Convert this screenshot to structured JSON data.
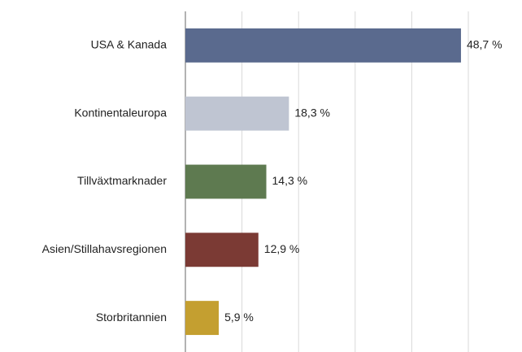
{
  "chart_data": {
    "type": "bar",
    "orientation": "horizontal",
    "categories": [
      "USA & Kanada",
      "Kontinentaleuropa",
      "Tillväxtmarknader",
      "Asien/Stillahavsregionen",
      "Storbritannien"
    ],
    "values": [
      48.7,
      18.3,
      14.3,
      12.9,
      5.9
    ],
    "value_labels": [
      "48,7 %",
      "18,3 %",
      "14,3 %",
      "12,9 %",
      "5,9 %"
    ],
    "colors": [
      "#5a6a8e",
      "#bfc5d2",
      "#5e7a50",
      "#7b3a34",
      "#c49f30"
    ],
    "xlim": [
      0,
      50
    ],
    "xticks": [
      0,
      10,
      20,
      30,
      40,
      50
    ],
    "grid": true
  }
}
